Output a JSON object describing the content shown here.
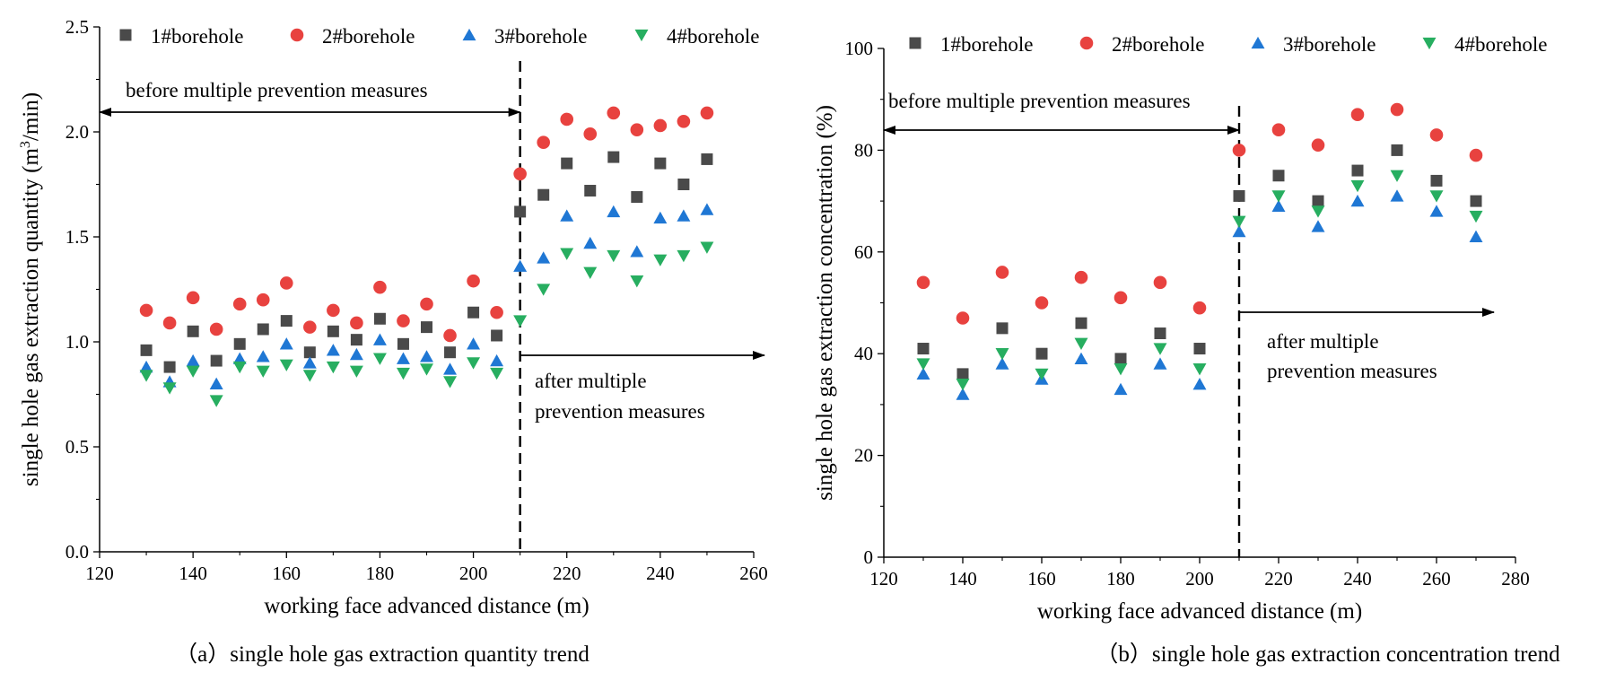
{
  "colors": {
    "s1": "#4a4a4a",
    "s2": "#e8423f",
    "s3": "#1f77d4",
    "s4": "#27ae60",
    "axis": "#000000"
  },
  "chart_data": [
    {
      "type": "scatter",
      "caption": "（a）single hole gas extraction quantity trend",
      "xlabel": "working face advanced distance (m)",
      "ylabel_main": "single hole gas extraction quantity (m",
      "ylabel_sup": "3",
      "ylabel_tail": "/min)",
      "xlim": [
        120,
        260
      ],
      "ylim": [
        0.0,
        2.5
      ],
      "xticks": [
        120,
        140,
        160,
        180,
        200,
        220,
        240,
        260
      ],
      "yticks": [
        0.0,
        0.5,
        1.0,
        1.5,
        2.0,
        2.5
      ],
      "ytick_decimals": 1,
      "divider_x": 210,
      "annotations": {
        "before": "before multiple prevention measures",
        "after_line1": "after multiple",
        "after_line2": "prevention measures"
      },
      "x": [
        130,
        135,
        140,
        145,
        150,
        155,
        160,
        165,
        170,
        175,
        180,
        185,
        190,
        195,
        200,
        205,
        210,
        215,
        220,
        225,
        230,
        235,
        240,
        245,
        250
      ],
      "series": [
        {
          "name": "1#borehole",
          "marker": "square",
          "values": [
            0.96,
            0.88,
            1.05,
            0.91,
            0.99,
            1.06,
            1.1,
            0.95,
            1.05,
            1.01,
            1.11,
            0.99,
            1.07,
            0.95,
            1.14,
            1.03,
            1.62,
            1.7,
            1.85,
            1.72,
            1.88,
            1.69,
            1.85,
            1.75,
            1.87
          ]
        },
        {
          "name": "2#borehole",
          "marker": "circle",
          "values": [
            1.15,
            1.09,
            1.21,
            1.06,
            1.18,
            1.2,
            1.28,
            1.07,
            1.15,
            1.09,
            1.26,
            1.1,
            1.18,
            1.03,
            1.29,
            1.14,
            1.8,
            1.95,
            2.06,
            1.99,
            2.09,
            2.01,
            2.03,
            2.05,
            2.09
          ]
        },
        {
          "name": "3#borehole",
          "marker": "triangle-up",
          "values": [
            0.88,
            0.81,
            0.91,
            0.8,
            0.92,
            0.93,
            0.99,
            0.9,
            0.96,
            0.94,
            1.01,
            0.92,
            0.93,
            0.87,
            0.99,
            0.91,
            1.36,
            1.4,
            1.6,
            1.47,
            1.62,
            1.43,
            1.59,
            1.6,
            1.63
          ]
        },
        {
          "name": "4#borehole",
          "marker": "triangle-down",
          "values": [
            0.84,
            0.78,
            0.86,
            0.72,
            0.88,
            0.86,
            0.89,
            0.84,
            0.88,
            0.86,
            0.92,
            0.85,
            0.87,
            0.81,
            0.9,
            0.85,
            1.1,
            1.25,
            1.42,
            1.33,
            1.41,
            1.29,
            1.39,
            1.41,
            1.45
          ]
        }
      ]
    },
    {
      "type": "scatter",
      "caption": "（b）single hole gas extraction concentration trend",
      "xlabel": "working face advanced distance (m)",
      "ylabel_main": "single hole gas extraction concentration (%)",
      "ylabel_sup": "",
      "ylabel_tail": "",
      "xlim": [
        120,
        280
      ],
      "ylim": [
        0,
        100
      ],
      "xticks": [
        120,
        140,
        160,
        180,
        200,
        220,
        240,
        260,
        280
      ],
      "yticks": [
        0,
        20,
        40,
        60,
        80,
        100
      ],
      "ytick_decimals": 0,
      "divider_x": 210,
      "annotations": {
        "before": "before multiple prevention measures",
        "after_line1": "after multiple",
        "after_line2": "prevention measures"
      },
      "x": [
        130,
        140,
        150,
        160,
        170,
        180,
        190,
        200,
        210,
        220,
        230,
        240,
        250,
        260,
        270
      ],
      "series": [
        {
          "name": "1#borehole",
          "marker": "square",
          "values": [
            41,
            36,
            45,
            40,
            46,
            39,
            44,
            41,
            71,
            75,
            70,
            76,
            80,
            74,
            70
          ]
        },
        {
          "name": "2#borehole",
          "marker": "circle",
          "values": [
            54,
            47,
            56,
            50,
            55,
            51,
            54,
            49,
            80,
            84,
            81,
            87,
            88,
            83,
            79
          ]
        },
        {
          "name": "3#borehole",
          "marker": "triangle-up",
          "values": [
            36,
            32,
            38,
            35,
            39,
            33,
            38,
            34,
            64,
            69,
            65,
            70,
            71,
            68,
            63
          ]
        },
        {
          "name": "4#borehole",
          "marker": "triangle-down",
          "values": [
            38,
            34,
            40,
            36,
            42,
            37,
            41,
            37,
            66,
            71,
            68,
            73,
            75,
            71,
            67
          ]
        }
      ]
    }
  ]
}
